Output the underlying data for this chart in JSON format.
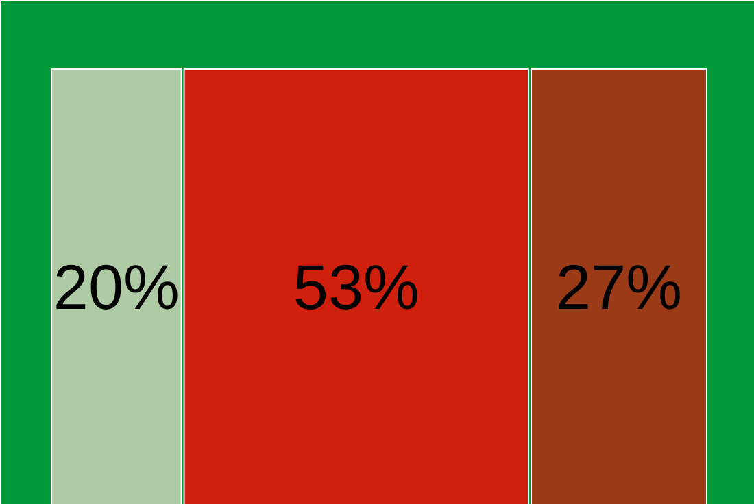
{
  "chart_data": {
    "type": "other",
    "categories": [
      null,
      null,
      null
    ],
    "values": [
      20,
      53,
      27
    ],
    "value_labels": [
      "20%",
      "53%",
      "27%"
    ],
    "colors": [
      "#aecba5",
      "#d11f0e",
      "#9a3a16"
    ]
  }
}
